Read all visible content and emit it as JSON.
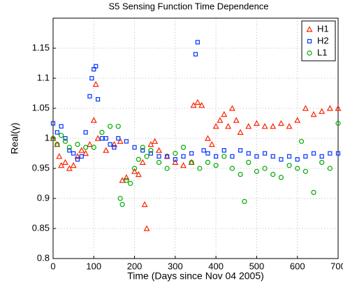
{
  "chart_data": {
    "type": "scatter",
    "title": "S5 Sensing Function Time Dependence",
    "x_label": "Time (Days since Nov 04 2005)",
    "y_label": "Real(γ)",
    "xlim": [
      0,
      700
    ],
    "xticks": [
      0,
      100,
      200,
      300,
      400,
      500,
      600,
      700
    ],
    "ylim": [
      0.8,
      1.2
    ],
    "yticks": [
      0.8,
      0.85,
      0.9,
      0.95,
      1,
      1.05,
      1.1,
      1.15
    ],
    "grid": true,
    "legend_position": "upper-right",
    "series": [
      {
        "name": "H1",
        "color": "#ff2200",
        "marker": "triangle",
        "x": [
          0,
          10,
          15,
          20,
          30,
          40,
          50,
          60,
          70,
          80,
          90,
          100,
          105,
          110,
          130,
          150,
          165,
          170,
          180,
          200,
          210,
          220,
          225,
          230,
          240,
          250,
          260,
          280,
          300,
          320,
          340,
          345,
          355,
          365,
          380,
          390,
          400,
          410,
          420,
          430,
          440,
          450,
          460,
          480,
          500,
          520,
          540,
          560,
          580,
          600,
          620,
          640,
          660,
          680,
          700
        ],
        "values": [
          1.0,
          0.99,
          0.97,
          0.955,
          0.96,
          0.95,
          0.955,
          0.97,
          0.98,
          0.975,
          0.99,
          1.03,
          1.09,
          1.0,
          0.98,
          0.99,
          0.995,
          0.93,
          0.935,
          0.945,
          0.94,
          0.96,
          0.89,
          0.85,
          0.99,
          0.995,
          0.98,
          0.97,
          0.96,
          0.955,
          0.96,
          1.055,
          1.06,
          1.055,
          1.0,
          0.99,
          1.02,
          1.03,
          1.04,
          1.02,
          1.05,
          1.03,
          1.01,
          1.02,
          1.025,
          1.02,
          1.02,
          1.025,
          1.02,
          1.03,
          1.05,
          1.04,
          1.045,
          1.05,
          1.05
        ]
      },
      {
        "name": "H2",
        "color": "#0033ff",
        "marker": "square",
        "x": [
          0,
          10,
          20,
          30,
          40,
          50,
          60,
          70,
          80,
          90,
          95,
          100,
          105,
          110,
          120,
          130,
          140,
          150,
          160,
          180,
          200,
          220,
          240,
          260,
          280,
          300,
          320,
          340,
          350,
          355,
          370,
          380,
          400,
          420,
          440,
          460,
          480,
          500,
          520,
          540,
          560,
          580,
          600,
          620,
          640,
          660,
          680,
          700
        ],
        "values": [
          1.025,
          1.01,
          1.02,
          1.0,
          0.98,
          0.975,
          0.965,
          0.97,
          1.01,
          1.07,
          1.1,
          1.115,
          1.12,
          1.065,
          1.0,
          1.0,
          0.99,
          0.985,
          1.0,
          0.995,
          0.985,
          0.98,
          0.975,
          0.97,
          0.97,
          0.965,
          0.97,
          0.975,
          1.14,
          1.16,
          0.98,
          0.975,
          0.97,
          0.98,
          0.97,
          0.98,
          0.975,
          0.97,
          0.975,
          0.97,
          0.965,
          0.97,
          0.965,
          0.97,
          0.975,
          0.97,
          0.975,
          0.975
        ]
      },
      {
        "name": "L1",
        "color": "#00aa00",
        "marker": "circle",
        "x": [
          0,
          10,
          20,
          30,
          40,
          60,
          80,
          100,
          120,
          140,
          160,
          165,
          170,
          180,
          190,
          200,
          210,
          220,
          230,
          240,
          260,
          280,
          300,
          320,
          340,
          360,
          380,
          400,
          420,
          440,
          460,
          470,
          480,
          500,
          520,
          540,
          560,
          580,
          600,
          610,
          620,
          640,
          660,
          680,
          700
        ],
        "values": [
          1.0,
          0.99,
          1.005,
          0.995,
          0.985,
          0.99,
          0.985,
          0.985,
          1.01,
          1.02,
          1.02,
          0.9,
          0.89,
          0.93,
          0.925,
          0.95,
          0.965,
          0.985,
          0.97,
          0.98,
          0.96,
          0.95,
          0.975,
          0.985,
          0.96,
          0.95,
          0.96,
          0.955,
          0.97,
          0.95,
          0.94,
          0.895,
          0.96,
          0.945,
          0.95,
          0.94,
          0.935,
          0.955,
          0.95,
          0.995,
          0.945,
          0.91,
          0.96,
          0.95,
          1.025
        ]
      }
    ]
  }
}
